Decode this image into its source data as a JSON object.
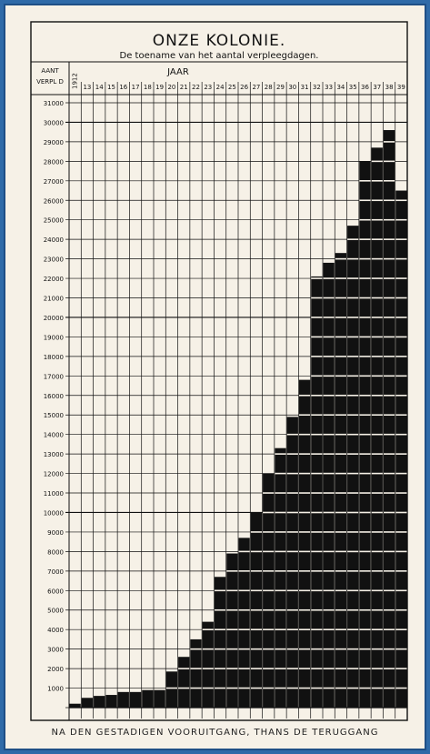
{
  "caption": "NA DEN GESTADIGEN VOORUITGANG, THANS DE TERUGGANG",
  "colors": {
    "background": "#f6f1e7",
    "ink": "#111111",
    "frame": "#2f6aa8"
  },
  "chart_data": {
    "type": "bar",
    "title": "ONZE KOLONIE.",
    "subtitle": "De toename van het aantal verpleegdagen.",
    "ylabel": "AANT VERPL D",
    "xlabel": "JAAR",
    "categories": [
      "1912",
      "13",
      "14",
      "15",
      "16",
      "17",
      "18",
      "19",
      "20",
      "21",
      "22",
      "23",
      "24",
      "25",
      "26",
      "27",
      "28",
      "29",
      "30",
      "31",
      "32",
      "33",
      "34",
      "35",
      "36",
      "37",
      "38",
      "39"
    ],
    "values": [
      200,
      500,
      600,
      650,
      800,
      800,
      900,
      900,
      1850,
      2600,
      3500,
      4400,
      6700,
      7900,
      8700,
      10000,
      12000,
      13300,
      14900,
      16800,
      22100,
      22800,
      23300,
      24700,
      28000,
      28700,
      29600,
      26500
    ],
    "ytick_labels": [
      "1000",
      "2000",
      "3000",
      "4000",
      "5000",
      "6000",
      "7000",
      "8000",
      "9000",
      "10000",
      "11000",
      "12000",
      "13000",
      "14000",
      "15000",
      "16000",
      "17000",
      "18000",
      "19000",
      "20000",
      "21000",
      "22000",
      "23000",
      "24000",
      "25000",
      "26000",
      "27000",
      "28000",
      "29000",
      "30000",
      "31000"
    ],
    "ylim": [
      0,
      31000
    ],
    "grid": true
  }
}
